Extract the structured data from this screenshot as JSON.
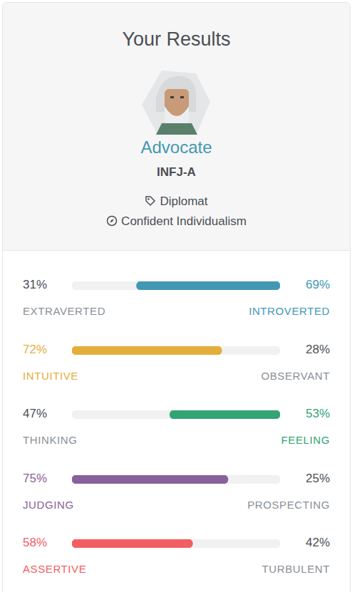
{
  "header": {
    "title": "Your Results",
    "type_name": "Advocate",
    "type_code": "INFJ-A",
    "role": "Diplomat",
    "strategy": "Confident Individualism"
  },
  "chart_data": {
    "type": "bar",
    "orientation": "horizontal",
    "xlim": [
      0,
      100
    ],
    "tick_labels": false,
    "grid": false,
    "traits": [
      {
        "left": "EXTRAVERTED",
        "right": "INTROVERTED",
        "values": [
          31,
          69
        ],
        "value_labels": [
          "31%",
          "69%"
        ],
        "color": "#4298b4"
      },
      {
        "left": "INTUITIVE",
        "right": "OBSERVANT",
        "values": [
          72,
          28
        ],
        "value_labels": [
          "72%",
          "28%"
        ],
        "color": "#e4ae3a"
      },
      {
        "left": "THINKING",
        "right": "FEELING",
        "values": [
          47,
          53
        ],
        "value_labels": [
          "47%",
          "53%"
        ],
        "color": "#33a474"
      },
      {
        "left": "JUDGING",
        "right": "PROSPECTING",
        "values": [
          75,
          25
        ],
        "value_labels": [
          "75%",
          "25%"
        ],
        "color": "#88619a"
      },
      {
        "left": "ASSERTIVE",
        "right": "TURBULENT",
        "values": [
          58,
          42
        ],
        "value_labels": [
          "58%",
          "42%"
        ],
        "color": "#f25e62"
      }
    ]
  }
}
